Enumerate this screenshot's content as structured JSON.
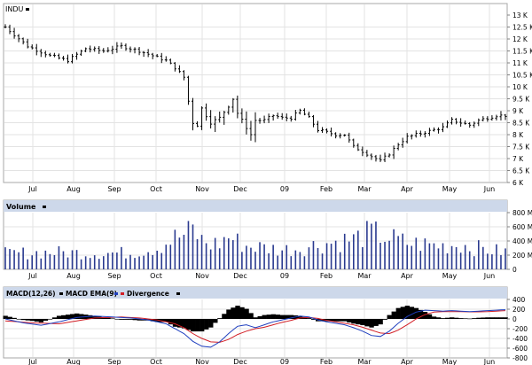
{
  "chart_data": {
    "type": "bar",
    "symbol": "INDU",
    "months": [
      "Jul",
      "Aug",
      "Sep",
      "Oct",
      "Nov",
      "Dec",
      "09",
      "Feb",
      "Mar",
      "Apr",
      "May",
      "Jun"
    ],
    "price": {
      "ylim": [
        6000,
        13000
      ],
      "ticks": [
        "6 K",
        "6.5 K",
        "7 K",
        "7.5 K",
        "8 K",
        "8.5 K",
        "9 K",
        "9.5 K",
        "10 K",
        "10.5 K",
        "11 K",
        "11.5 K",
        "12 K",
        "12.5 K",
        "13 K"
      ],
      "anchors": [
        [
          0,
          12500
        ],
        [
          5,
          11700
        ],
        [
          10,
          11300
        ],
        [
          14,
          11100
        ],
        [
          18,
          11600
        ],
        [
          22,
          11500
        ],
        [
          26,
          11700
        ],
        [
          30,
          11500
        ],
        [
          33,
          11300
        ],
        [
          36,
          11100
        ],
        [
          38,
          10800
        ],
        [
          40,
          10400
        ],
        [
          41,
          9400
        ],
        [
          42,
          8500
        ],
        [
          43,
          8400
        ],
        [
          44,
          9100
        ],
        [
          45,
          8800
        ],
        [
          46,
          8500
        ],
        [
          48,
          8700
        ],
        [
          50,
          9200
        ],
        [
          51,
          9500
        ],
        [
          52,
          8900
        ],
        [
          54,
          8300
        ],
        [
          55,
          8000
        ],
        [
          56,
          8600
        ],
        [
          58,
          8600
        ],
        [
          60,
          8800
        ],
        [
          62,
          8700
        ],
        [
          64,
          8700
        ],
        [
          66,
          9000
        ],
        [
          68,
          8700
        ],
        [
          70,
          8200
        ],
        [
          72,
          8100
        ],
        [
          74,
          8000
        ],
        [
          76,
          8000
        ],
        [
          78,
          7500
        ],
        [
          80,
          7300
        ],
        [
          82,
          7100
        ],
        [
          84,
          6900
        ],
        [
          86,
          7200
        ],
        [
          88,
          7600
        ],
        [
          90,
          7900
        ],
        [
          92,
          8000
        ],
        [
          94,
          8100
        ],
        [
          96,
          8200
        ],
        [
          98,
          8300
        ],
        [
          100,
          8600
        ],
        [
          102,
          8500
        ],
        [
          104,
          8400
        ],
        [
          106,
          8600
        ],
        [
          108,
          8700
        ],
        [
          110,
          8800
        ],
        [
          112,
          8800
        ]
      ]
    },
    "volume": {
      "title": "Volume",
      "ylim": [
        0,
        800
      ],
      "ticks": [
        "0",
        "200 M",
        "400 M",
        "600 M",
        "800 M"
      ],
      "anchors": [
        [
          0,
          240
        ],
        [
          10,
          260
        ],
        [
          18,
          250
        ],
        [
          28,
          250
        ],
        [
          34,
          330
        ],
        [
          38,
          480
        ],
        [
          40,
          520
        ],
        [
          42,
          600
        ],
        [
          44,
          440
        ],
        [
          46,
          380
        ],
        [
          48,
          400
        ],
        [
          50,
          500
        ],
        [
          52,
          420
        ],
        [
          54,
          360
        ],
        [
          58,
          330
        ],
        [
          62,
          300
        ],
        [
          66,
          320
        ],
        [
          70,
          380
        ],
        [
          74,
          420
        ],
        [
          78,
          460
        ],
        [
          82,
          560
        ],
        [
          84,
          520
        ],
        [
          86,
          480
        ],
        [
          90,
          400
        ],
        [
          94,
          380
        ],
        [
          98,
          360
        ],
        [
          102,
          380
        ],
        [
          106,
          320
        ],
        [
          110,
          280
        ],
        [
          112,
          270
        ]
      ]
    },
    "macd": {
      "legend": [
        "MACD(12,26)",
        "MACD EMA(9)",
        "Divergence"
      ],
      "ylim": [
        -800,
        400
      ],
      "ticks": [
        "-800",
        "-600",
        "-400",
        "-200",
        "0",
        "200",
        "400"
      ],
      "macd_anchors": [
        [
          0,
          0
        ],
        [
          4,
          -80
        ],
        [
          8,
          -130
        ],
        [
          12,
          -60
        ],
        [
          16,
          30
        ],
        [
          20,
          60
        ],
        [
          24,
          40
        ],
        [
          28,
          20
        ],
        [
          32,
          -20
        ],
        [
          34,
          -60
        ],
        [
          36,
          -100
        ],
        [
          38,
          -200
        ],
        [
          40,
          -300
        ],
        [
          42,
          -460
        ],
        [
          44,
          -560
        ],
        [
          46,
          -580
        ],
        [
          48,
          -470
        ],
        [
          50,
          -300
        ],
        [
          52,
          -150
        ],
        [
          54,
          -120
        ],
        [
          56,
          -180
        ],
        [
          58,
          -120
        ],
        [
          60,
          -60
        ],
        [
          62,
          -20
        ],
        [
          64,
          20
        ],
        [
          66,
          60
        ],
        [
          68,
          40
        ],
        [
          70,
          -20
        ],
        [
          72,
          -60
        ],
        [
          74,
          -90
        ],
        [
          76,
          -120
        ],
        [
          78,
          -180
        ],
        [
          80,
          -250
        ],
        [
          82,
          -340
        ],
        [
          84,
          -360
        ],
        [
          86,
          -250
        ],
        [
          88,
          -90
        ],
        [
          90,
          50
        ],
        [
          92,
          140
        ],
        [
          94,
          180
        ],
        [
          96,
          170
        ],
        [
          98,
          160
        ],
        [
          100,
          170
        ],
        [
          102,
          160
        ],
        [
          104,
          150
        ],
        [
          106,
          160
        ],
        [
          108,
          170
        ],
        [
          110,
          180
        ],
        [
          112,
          190
        ]
      ],
      "signal_anchors": [
        [
          0,
          -40
        ],
        [
          6,
          -80
        ],
        [
          12,
          -100
        ],
        [
          16,
          -40
        ],
        [
          20,
          20
        ],
        [
          26,
          40
        ],
        [
          30,
          20
        ],
        [
          34,
          -20
        ],
        [
          38,
          -100
        ],
        [
          40,
          -180
        ],
        [
          42,
          -300
        ],
        [
          44,
          -400
        ],
        [
          46,
          -470
        ],
        [
          48,
          -480
        ],
        [
          50,
          -420
        ],
        [
          52,
          -320
        ],
        [
          54,
          -250
        ],
        [
          56,
          -200
        ],
        [
          58,
          -170
        ],
        [
          60,
          -120
        ],
        [
          62,
          -70
        ],
        [
          64,
          -30
        ],
        [
          66,
          20
        ],
        [
          68,
          30
        ],
        [
          70,
          10
        ],
        [
          72,
          -30
        ],
        [
          74,
          -60
        ],
        [
          76,
          -90
        ],
        [
          78,
          -120
        ],
        [
          80,
          -170
        ],
        [
          82,
          -230
        ],
        [
          84,
          -290
        ],
        [
          86,
          -300
        ],
        [
          88,
          -230
        ],
        [
          90,
          -120
        ],
        [
          92,
          0
        ],
        [
          94,
          90
        ],
        [
          96,
          140
        ],
        [
          98,
          150
        ],
        [
          100,
          150
        ],
        [
          102,
          150
        ],
        [
          104,
          145
        ],
        [
          106,
          145
        ],
        [
          108,
          150
        ],
        [
          110,
          160
        ],
        [
          112,
          170
        ]
      ]
    }
  }
}
